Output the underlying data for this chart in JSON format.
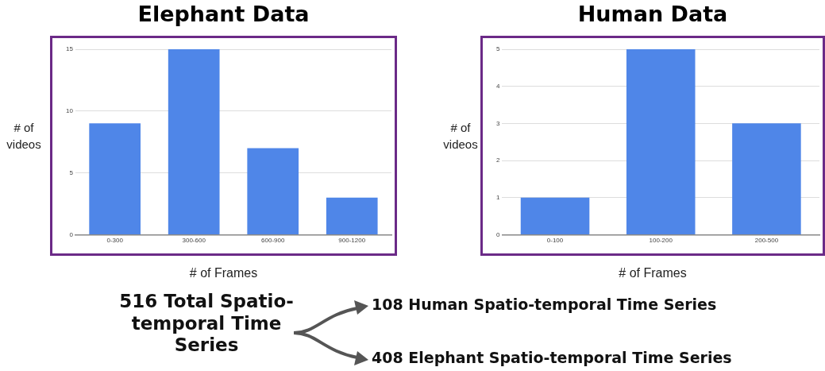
{
  "chart_data": [
    {
      "type": "bar",
      "title": "Elephant Data",
      "xlabel": "# of Frames",
      "ylabel": "# of videos",
      "categories": [
        "0-300",
        "300-600",
        "600-900",
        "900-1200"
      ],
      "values": [
        9,
        15,
        7,
        3
      ],
      "color": "#4f86e8",
      "ylim": [
        0,
        15
      ],
      "yticks": [
        0,
        5,
        10,
        15
      ],
      "grid": "y",
      "legend": false
    },
    {
      "type": "bar",
      "title": "Human Data",
      "xlabel": "# of Frames",
      "ylabel": "# of videos",
      "categories": [
        "0-100",
        "100-200",
        "200-500"
      ],
      "values": [
        1,
        5,
        3
      ],
      "color": "#4f86e8",
      "ylim": [
        0,
        5
      ],
      "yticks": [
        0,
        1,
        2,
        3,
        4,
        5
      ],
      "grid": "y",
      "legend": false
    },
    {
      "type": "other",
      "annotations": [
        "516 Total Spatio-temporal Time Series",
        "108 Human Spatio-temporal Time Series",
        "408 Elephant Spatio-temporal Time Series"
      ]
    }
  ]
}
